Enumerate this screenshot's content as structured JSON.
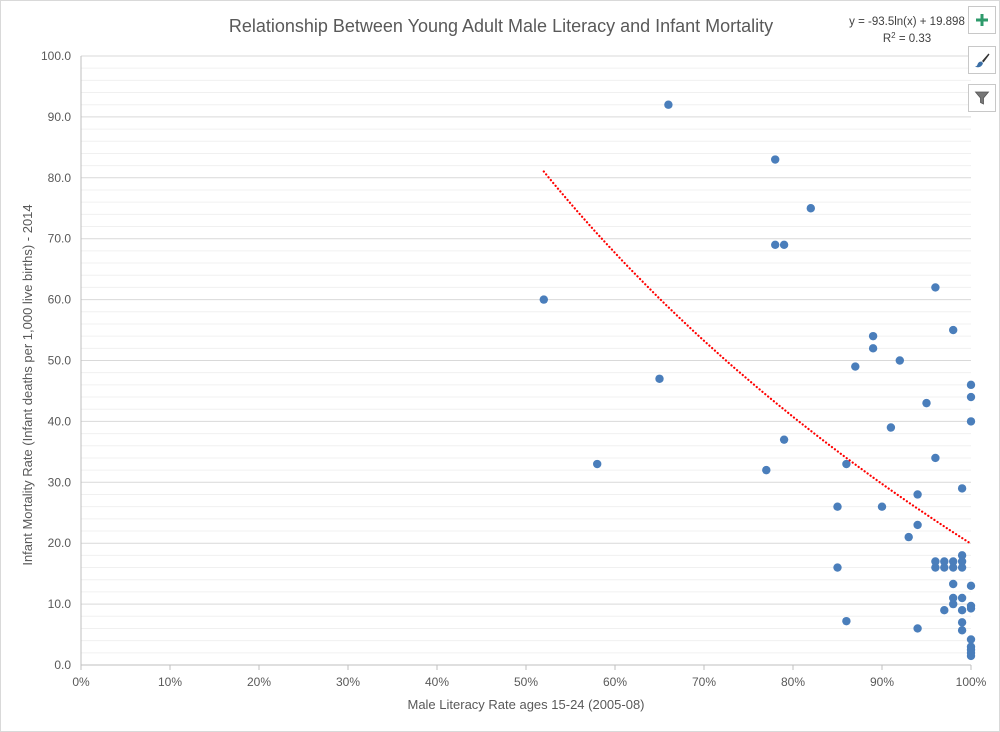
{
  "chart_data": {
    "type": "scatter",
    "title": "Relationship Between Young Adult Male Literacy and Infant Mortality",
    "xlabel": "Male Literacy Rate ages 15-24 (2005-08)",
    "ylabel": "Infant Mortality Rate (Infant deaths per 1,000 live births) - 2014",
    "xlim": [
      0,
      1
    ],
    "ylim": [
      0,
      100
    ],
    "x_ticks": [
      "0%",
      "10%",
      "20%",
      "30%",
      "40%",
      "50%",
      "60%",
      "70%",
      "80%",
      "90%",
      "100%"
    ],
    "y_ticks": [
      "0.0",
      "10.0",
      "20.0",
      "30.0",
      "40.0",
      "50.0",
      "60.0",
      "70.0",
      "80.0",
      "90.0",
      "100.0"
    ],
    "grid": true,
    "legend": "none",
    "series": [
      {
        "color": "#4a7ebb",
        "points": [
          {
            "x": 0.66,
            "y": 92
          },
          {
            "x": 0.78,
            "y": 83
          },
          {
            "x": 0.82,
            "y": 75
          },
          {
            "x": 0.78,
            "y": 69
          },
          {
            "x": 0.79,
            "y": 69
          },
          {
            "x": 0.96,
            "y": 62
          },
          {
            "x": 0.52,
            "y": 60
          },
          {
            "x": 0.98,
            "y": 55
          },
          {
            "x": 0.89,
            "y": 54
          },
          {
            "x": 0.89,
            "y": 52
          },
          {
            "x": 0.92,
            "y": 50
          },
          {
            "x": 0.87,
            "y": 49
          },
          {
            "x": 0.65,
            "y": 47
          },
          {
            "x": 1.0,
            "y": 46
          },
          {
            "x": 1.0,
            "y": 44
          },
          {
            "x": 0.95,
            "y": 43
          },
          {
            "x": 1.0,
            "y": 40
          },
          {
            "x": 0.91,
            "y": 39
          },
          {
            "x": 0.79,
            "y": 37
          },
          {
            "x": 0.96,
            "y": 34
          },
          {
            "x": 0.58,
            "y": 33
          },
          {
            "x": 0.86,
            "y": 33
          },
          {
            "x": 0.77,
            "y": 32
          },
          {
            "x": 0.99,
            "y": 29
          },
          {
            "x": 0.94,
            "y": 28
          },
          {
            "x": 0.85,
            "y": 26
          },
          {
            "x": 0.9,
            "y": 26
          },
          {
            "x": 0.94,
            "y": 23
          },
          {
            "x": 0.93,
            "y": 21
          },
          {
            "x": 0.99,
            "y": 18
          },
          {
            "x": 0.96,
            "y": 17
          },
          {
            "x": 0.97,
            "y": 17
          },
          {
            "x": 0.98,
            "y": 17
          },
          {
            "x": 0.99,
            "y": 17
          },
          {
            "x": 0.96,
            "y": 16
          },
          {
            "x": 0.97,
            "y": 16
          },
          {
            "x": 0.98,
            "y": 16
          },
          {
            "x": 0.99,
            "y": 16
          },
          {
            "x": 0.85,
            "y": 16
          },
          {
            "x": 0.98,
            "y": 13.3
          },
          {
            "x": 1.0,
            "y": 13
          },
          {
            "x": 0.98,
            "y": 11
          },
          {
            "x": 0.99,
            "y": 11
          },
          {
            "x": 0.98,
            "y": 10
          },
          {
            "x": 1.0,
            "y": 9.7
          },
          {
            "x": 1.0,
            "y": 9.3
          },
          {
            "x": 0.97,
            "y": 9
          },
          {
            "x": 0.99,
            "y": 9
          },
          {
            "x": 0.86,
            "y": 7.2
          },
          {
            "x": 0.99,
            "y": 7
          },
          {
            "x": 0.94,
            "y": 6
          },
          {
            "x": 0.99,
            "y": 5.7
          },
          {
            "x": 1.0,
            "y": 4.2
          },
          {
            "x": 1.0,
            "y": 3
          },
          {
            "x": 1.0,
            "y": 2.5
          },
          {
            "x": 1.0,
            "y": 2
          },
          {
            "x": 1.0,
            "y": 1.5
          }
        ]
      }
    ],
    "trendline": {
      "type": "logarithmic",
      "a": -93.5,
      "b": 19.898,
      "x_from": 0.52,
      "x_to": 1.0,
      "color": "#ff0000",
      "style": "dotted",
      "equation": "y = -93.5ln(x) + 19.898",
      "r2_prefix": "R",
      "r2_sup": "2",
      "r2_suffix": " = 0.33"
    }
  },
  "toolbar": {
    "buttons": [
      {
        "icon": "plus-icon",
        "color": "#2e9a6b"
      },
      {
        "icon": "brush-icon",
        "color": "#3a6ea5"
      },
      {
        "icon": "filter-icon",
        "color": "#666666"
      }
    ]
  }
}
